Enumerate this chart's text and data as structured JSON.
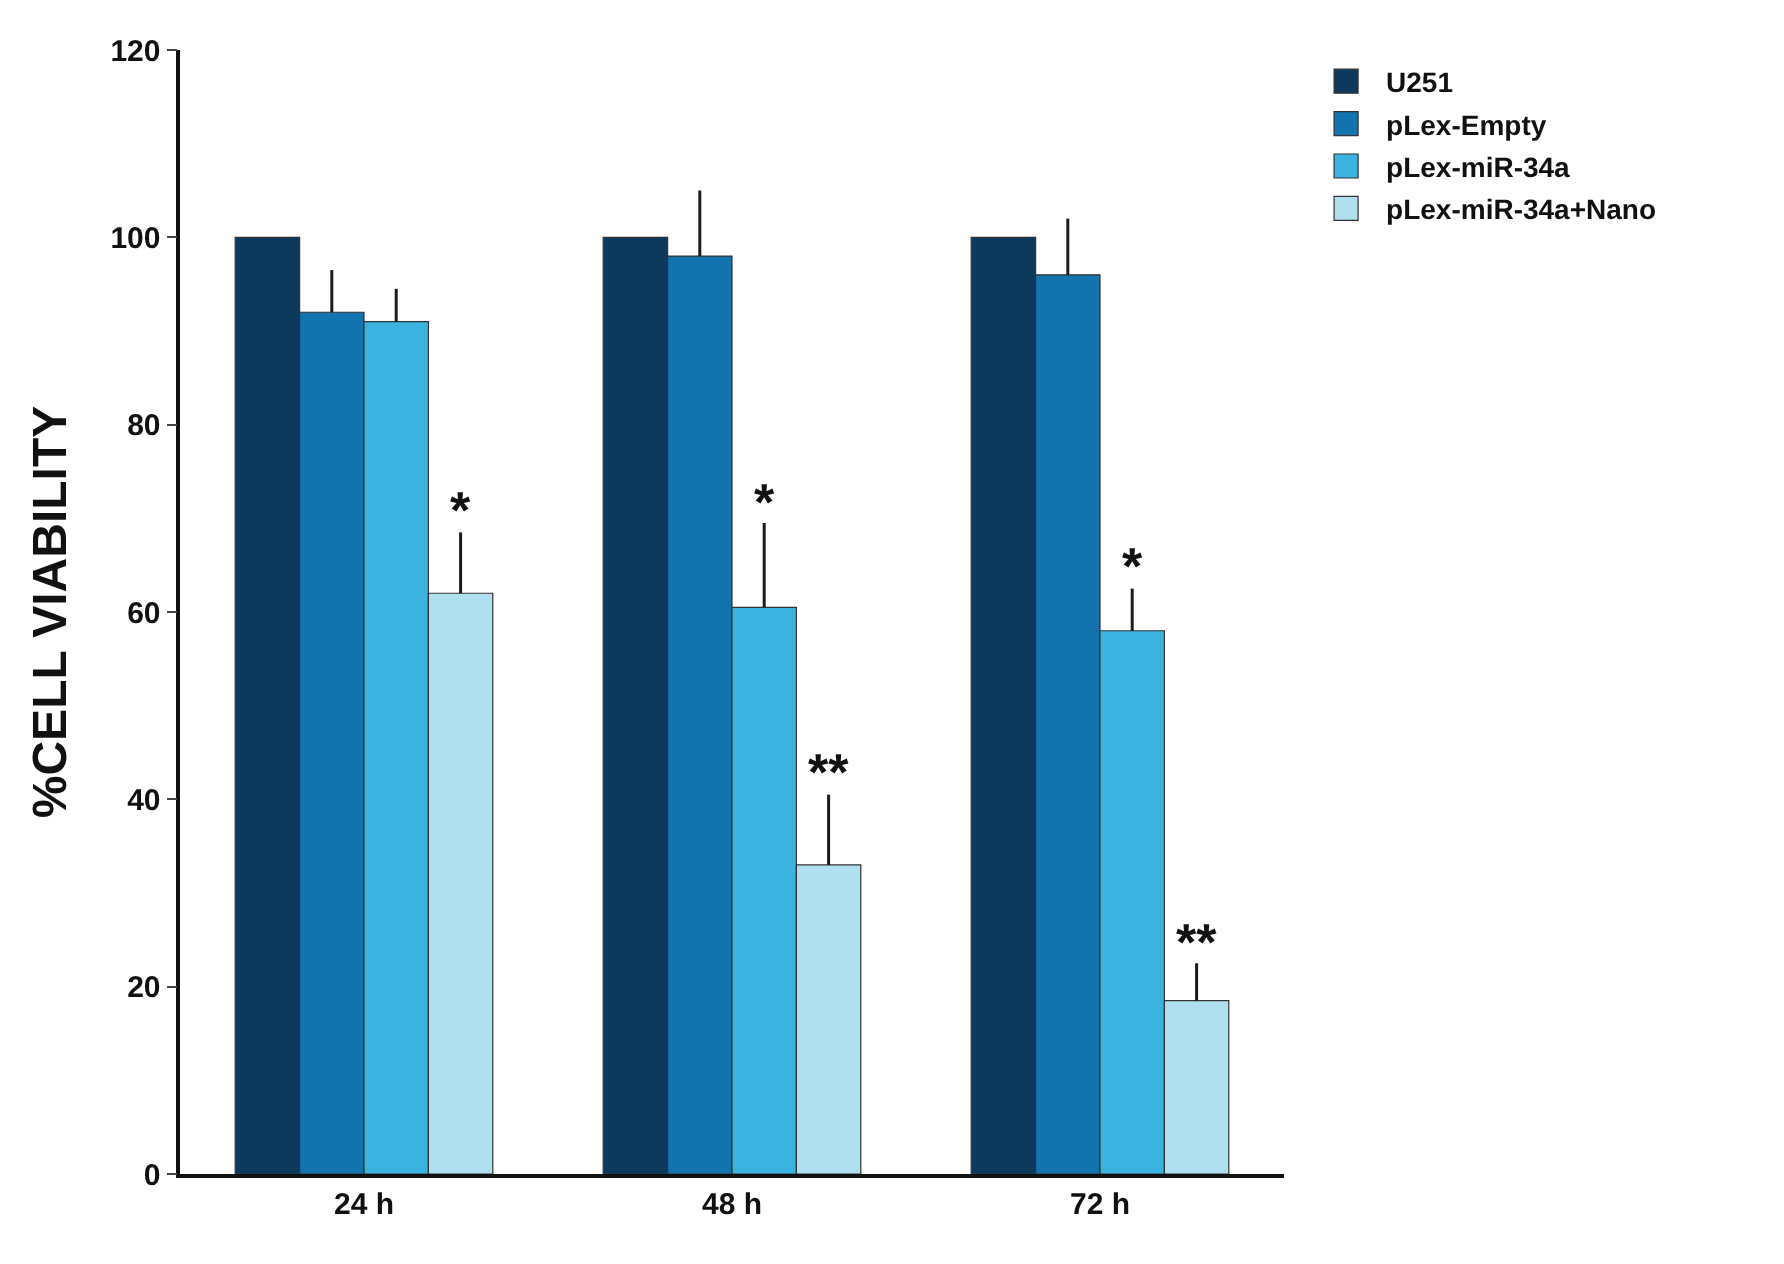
{
  "chart_data": {
    "type": "bar",
    "ylabel": "%CELL VIABILITY",
    "categories": [
      "24 h",
      "48 h",
      "72 h"
    ],
    "series": [
      {
        "name": "U251",
        "color": "#0d3a5c",
        "values": [
          100,
          100,
          100
        ],
        "errors": [
          null,
          null,
          null
        ]
      },
      {
        "name": "pLex-Empty",
        "color": "#1273ae",
        "values": [
          92,
          98,
          96
        ],
        "errors": [
          [
            92,
            96.5
          ],
          [
            98,
            105
          ],
          [
            96,
            102
          ]
        ]
      },
      {
        "name": "pLex-miR-34a",
        "color": "#3bb3e0",
        "values": [
          91,
          60.5,
          58
        ],
        "errors": [
          [
            91,
            94.5
          ],
          [
            60.5,
            69.5
          ],
          [
            58,
            62.5
          ]
        ],
        "value_labels": [
          null,
          "*",
          "*"
        ]
      },
      {
        "name": "pLex-miR-34a+Nano",
        "color": "#b0dff0",
        "values": [
          62,
          33,
          18.5
        ],
        "errors": [
          [
            62,
            68.5
          ],
          [
            33,
            40.5
          ],
          [
            18.5,
            22.5
          ]
        ],
        "value_labels": [
          "*",
          "**",
          "**"
        ]
      }
    ],
    "ylim": [
      0,
      120
    ],
    "yticks": [
      0,
      20,
      40,
      60,
      80,
      100,
      120
    ],
    "legend": "top right"
  }
}
